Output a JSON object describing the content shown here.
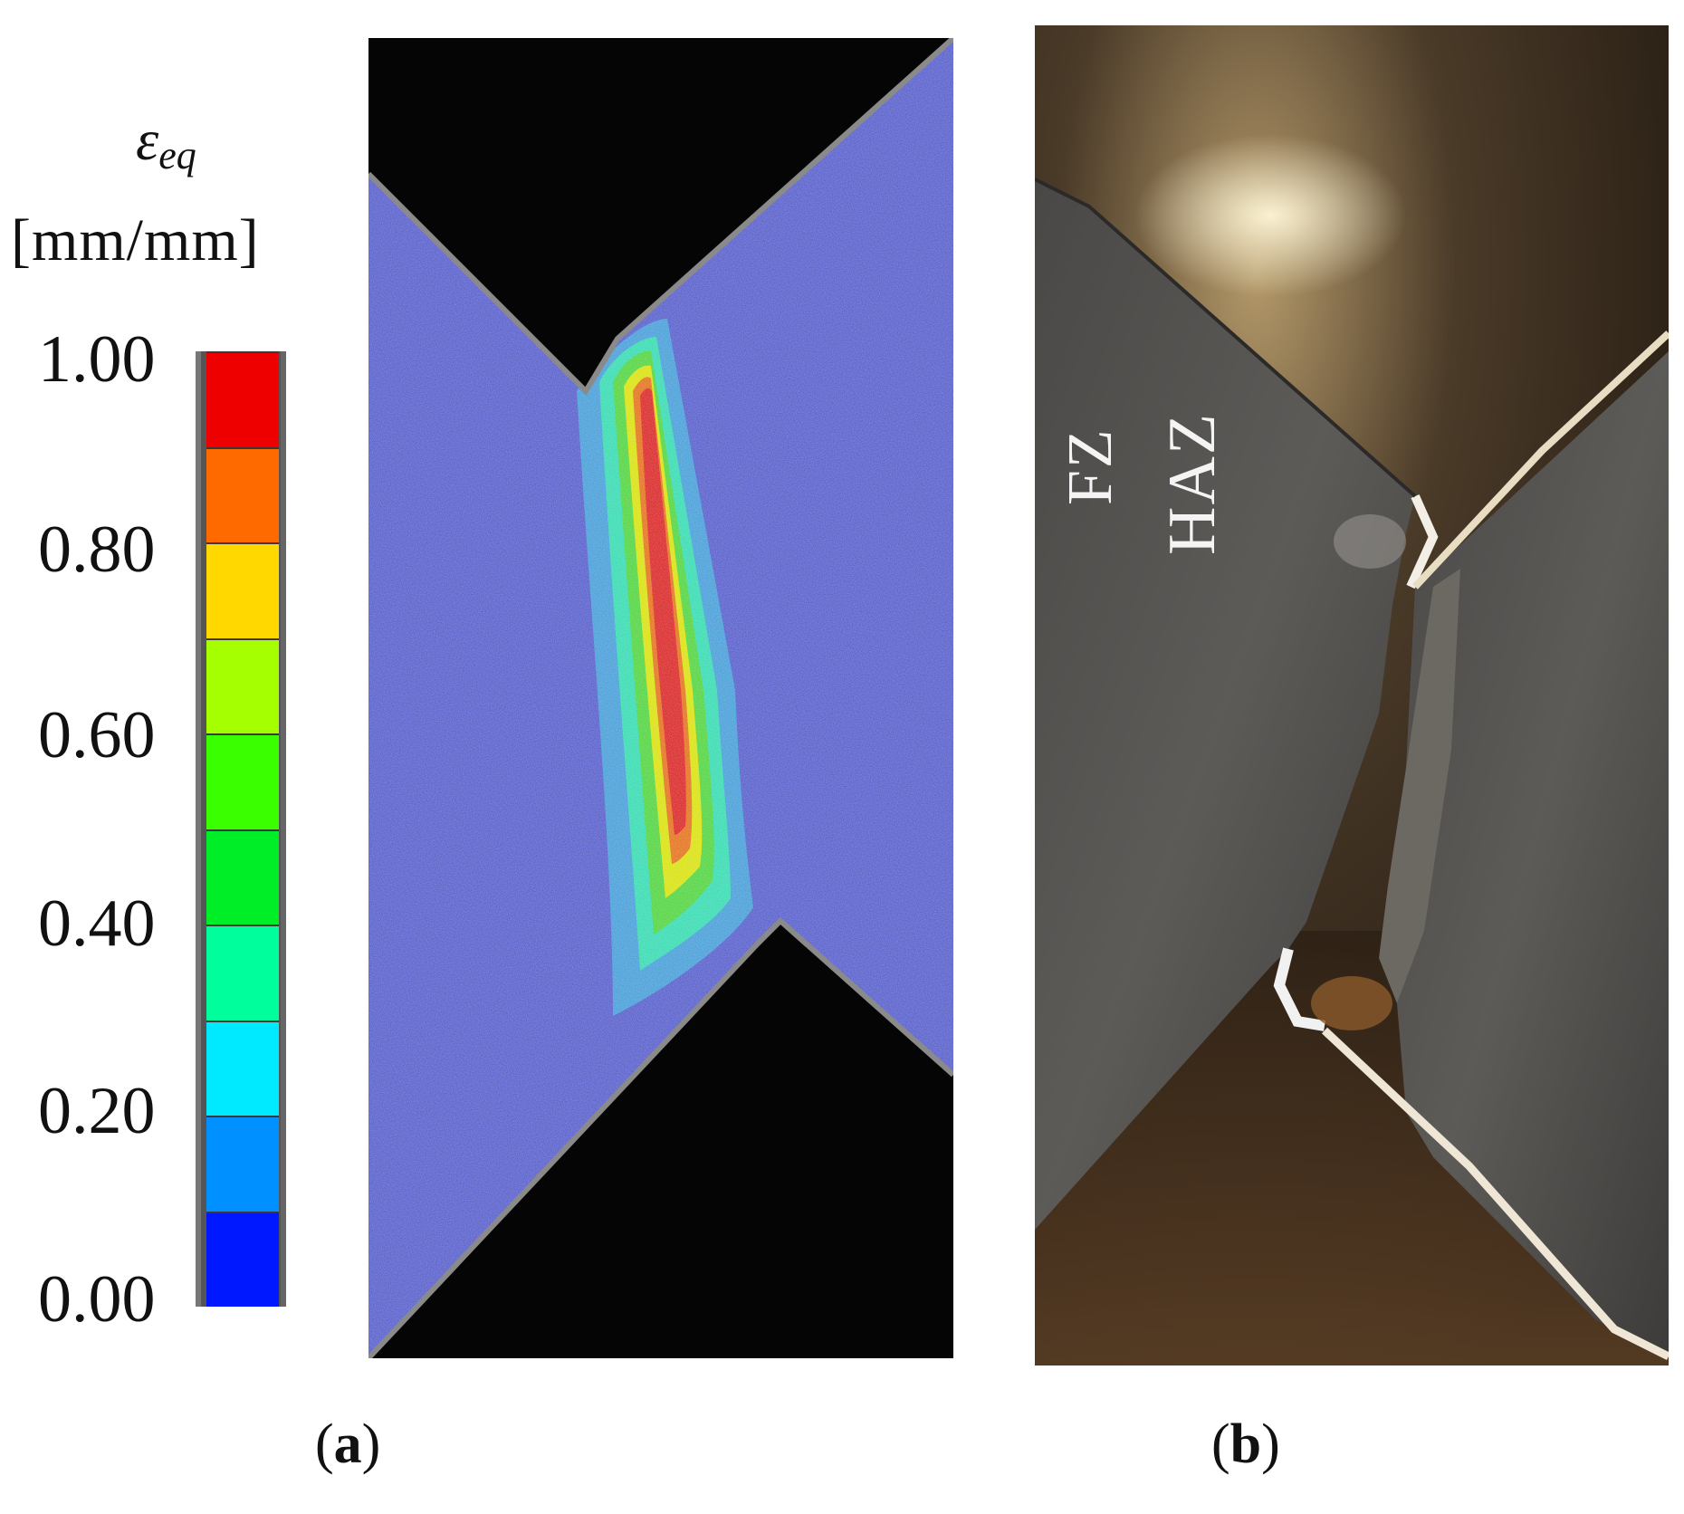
{
  "legend": {
    "symbol": "ε",
    "subscript": "eq",
    "unit": "[mm/mm]",
    "ticks": [
      "1.00",
      "0.80",
      "0.60",
      "0.40",
      "0.20",
      "0.00"
    ],
    "colors": [
      "#ee0000",
      "#ff6a00",
      "#ffd800",
      "#a6ff00",
      "#3aff00",
      "#00ee28",
      "#00ff9c",
      "#00eaff",
      "#0090ff",
      "#0018ff"
    ]
  },
  "panel_b": {
    "label_fz": "FZ",
    "label_haz": "HAZ"
  },
  "captions": {
    "a": {
      "open": "(",
      "letter": "a",
      "close": ")"
    },
    "b": {
      "open": "(",
      "letter": "b",
      "close": ")"
    }
  }
}
